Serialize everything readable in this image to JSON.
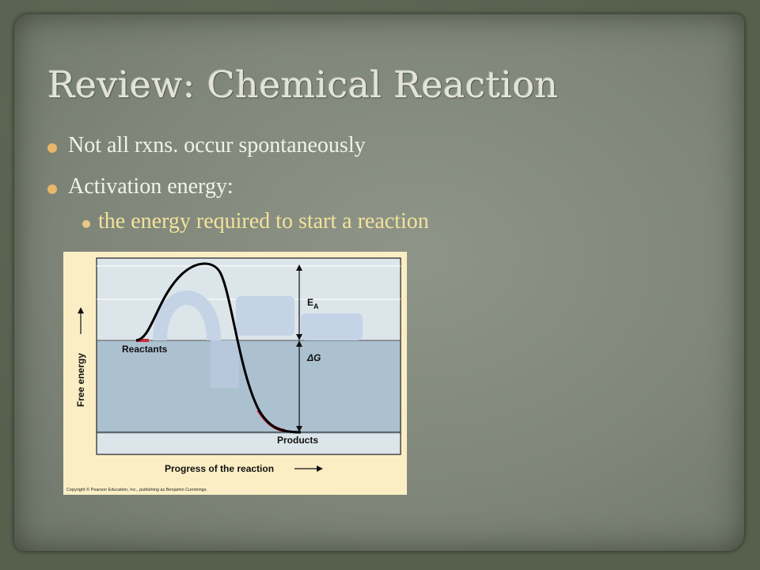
{
  "slide": {
    "title": "Review: Chemical Reaction",
    "bullets": [
      {
        "text": "Not all rxns. occur spontaneously"
      },
      {
        "text": "Activation energy:",
        "sub": "the energy required to start a reaction"
      }
    ]
  },
  "diagram": {
    "y_axis_label": "Free energy",
    "x_axis_label": "Progress of the reaction",
    "reactants_label": "Reactants",
    "products_label": "Products",
    "ea_label": "E",
    "ea_subscript": "A",
    "delta_g_label": "ΔG",
    "copyright": "Copyright © Pearson Education, Inc., publishing as Benjamin Cummings.",
    "colors": {
      "panel_bg": "#fbeec5",
      "plot_top": "#dce5ea",
      "plot_bottom": "#acc1cf",
      "curve": "#000000",
      "highlight": "#cc2a3a"
    }
  }
}
